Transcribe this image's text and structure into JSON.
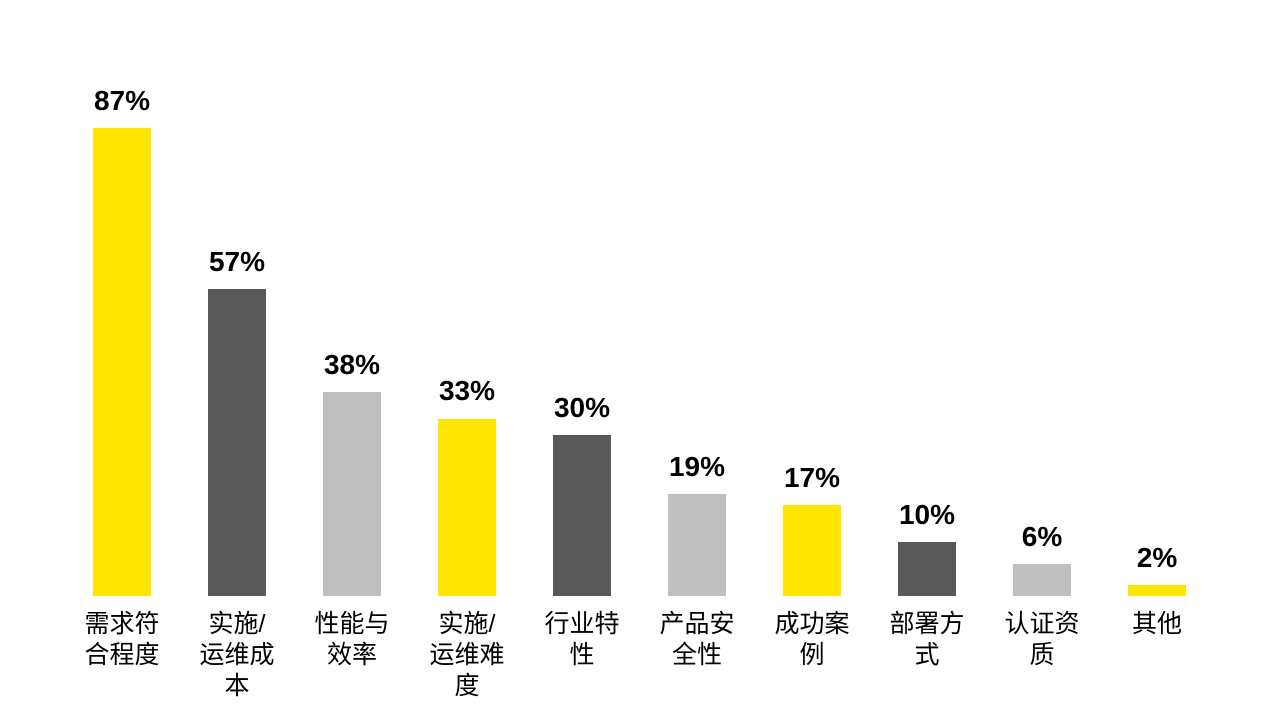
{
  "page": {
    "background_color": "#FFFFFF"
  },
  "chart_data": {
    "type": "bar",
    "categories": [
      "需求符合程度",
      "实施/运维成本",
      "性能与效率",
      "实施/运维难度",
      "行业特性",
      "产品安全性",
      "成功案例",
      "部署方式",
      "认证资质",
      "其他"
    ],
    "values": [
      87,
      57,
      38,
      33,
      30,
      19,
      17,
      10,
      6,
      2
    ],
    "value_labels": [
      "87%",
      "57%",
      "38%",
      "33%",
      "30%",
      "19%",
      "17%",
      "10%",
      "6%",
      "2%"
    ],
    "unit": "%",
    "ylim": [
      0,
      100
    ],
    "grid": false,
    "axes_visible": false,
    "legend": "none",
    "value_label_position": "above-bar",
    "palette": {
      "yellow": "#FFE600",
      "dark_gray": "#595959",
      "light_gray": "#BFBFBF"
    },
    "bars": [
      {
        "category": "需求符合程度",
        "category_wrapped": "需求符\n合程度",
        "value": 87,
        "value_label": "87%",
        "color_name": "yellow"
      },
      {
        "category": "实施/运维成本",
        "category_wrapped": "实施/\n运维成\n本",
        "value": 57,
        "value_label": "57%",
        "color_name": "dark_gray"
      },
      {
        "category": "性能与效率",
        "category_wrapped": "性能与\n效率",
        "value": 38,
        "value_label": "38%",
        "color_name": "light_gray"
      },
      {
        "category": "实施/运维难度",
        "category_wrapped": "实施/\n运维难\n度",
        "value": 33,
        "value_label": "33%",
        "color_name": "yellow"
      },
      {
        "category": "行业特性",
        "category_wrapped": "行业特\n性",
        "value": 30,
        "value_label": "30%",
        "color_name": "dark_gray"
      },
      {
        "category": "产品安全性",
        "category_wrapped": "产品安\n全性",
        "value": 19,
        "value_label": "19%",
        "color_name": "light_gray"
      },
      {
        "category": "成功案例",
        "category_wrapped": "成功案\n例",
        "value": 17,
        "value_label": "17%",
        "color_name": "yellow"
      },
      {
        "category": "部署方式",
        "category_wrapped": "部署方\n式",
        "value": 10,
        "value_label": "10%",
        "color_name": "dark_gray"
      },
      {
        "category": "认证资质",
        "category_wrapped": "认证资\n质",
        "value": 6,
        "value_label": "6%",
        "color_name": "light_gray"
      },
      {
        "category": "其他",
        "category_wrapped": "其他",
        "value": 2,
        "value_label": "2%",
        "color_name": "yellow"
      }
    ]
  }
}
